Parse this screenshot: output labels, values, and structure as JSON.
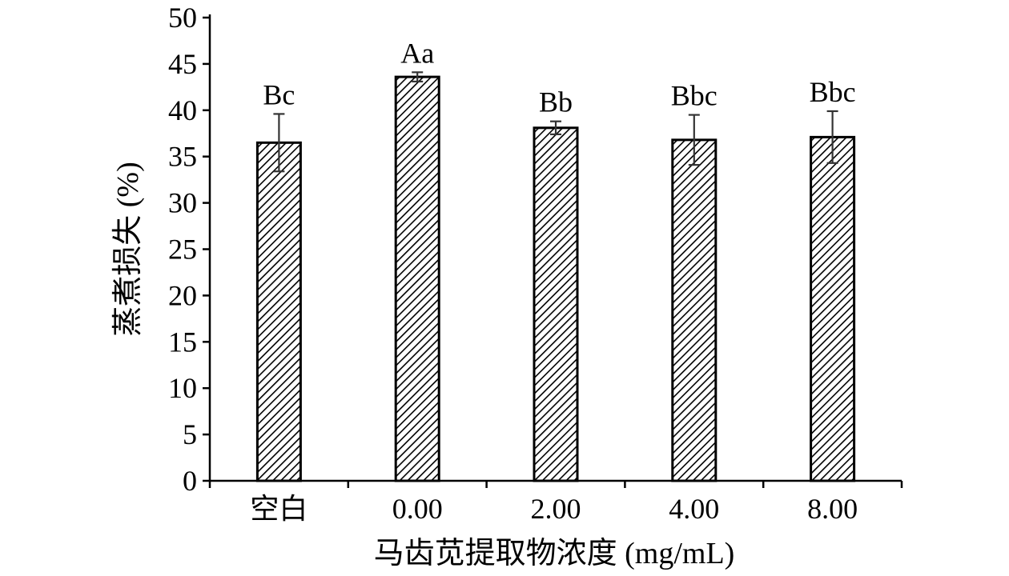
{
  "chart_data": {
    "type": "bar",
    "categories": [
      "空白",
      "0.00",
      "2.00",
      "4.00",
      "8.00"
    ],
    "values": [
      36.5,
      43.6,
      38.1,
      36.8,
      37.1
    ],
    "errors": [
      3.1,
      0.5,
      0.7,
      2.7,
      2.8
    ],
    "significance_labels": [
      "Bc",
      "Aa",
      "Bb",
      "Bbc",
      "Bbc"
    ],
    "xlabel": "马齿苋提取物浓度 (mg/mL)",
    "ylabel": "蒸煮损失 (%)",
    "ylim": [
      0,
      50
    ],
    "yticks": [
      "0",
      "5",
      "10",
      "15",
      "20",
      "25",
      "30",
      "35",
      "40",
      "45",
      "50"
    ],
    "grid": false,
    "bar_pattern": "diagonal-hatch",
    "colors": {
      "bar_fill": "#ffffff",
      "hatch": "#000000",
      "axis": "#000000",
      "error_bar": "#333333"
    }
  }
}
